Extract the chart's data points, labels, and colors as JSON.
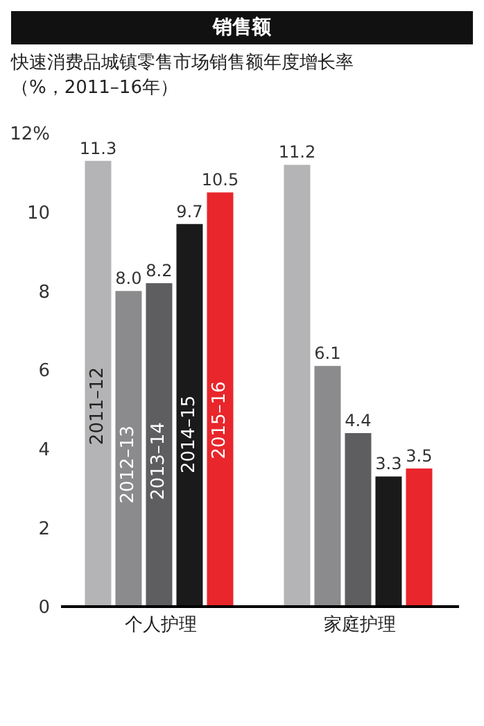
{
  "chart_data": {
    "type": "bar",
    "title": "销售额",
    "subtitle": "快速消费品城镇零售市场销售额年度增长率",
    "annotations": [
      "（%，2011–16年）"
    ],
    "categories": [
      "个人护理",
      "家庭护理"
    ],
    "series": [
      {
        "name": "2011–12",
        "color": "#b4b4b6",
        "values": [
          11.3,
          11.2
        ],
        "value_labels": [
          "11.3",
          "11.2"
        ]
      },
      {
        "name": "2012–13",
        "color": "#8b8b8d",
        "values": [
          8.0,
          6.1
        ],
        "value_labels": [
          "8.0",
          "6.1"
        ]
      },
      {
        "name": "2013–14",
        "color": "#5e5e60",
        "values": [
          8.2,
          4.4
        ],
        "value_labels": [
          "8.2",
          "4.4"
        ]
      },
      {
        "name": "2014–15",
        "color": "#1a1a1a",
        "values": [
          9.7,
          3.3
        ],
        "value_labels": [
          "9.7",
          "3.3"
        ]
      },
      {
        "name": "2015–16",
        "color": "#e8262b",
        "values": [
          10.5,
          3.5
        ],
        "value_labels": [
          "10.5",
          "3.5"
        ]
      }
    ],
    "ylim": [
      0,
      12
    ],
    "yticks": [
      0,
      2,
      4,
      6,
      8,
      10,
      {
        "value": 12,
        "label": "12%"
      }
    ],
    "grid": false,
    "legend": false
  }
}
